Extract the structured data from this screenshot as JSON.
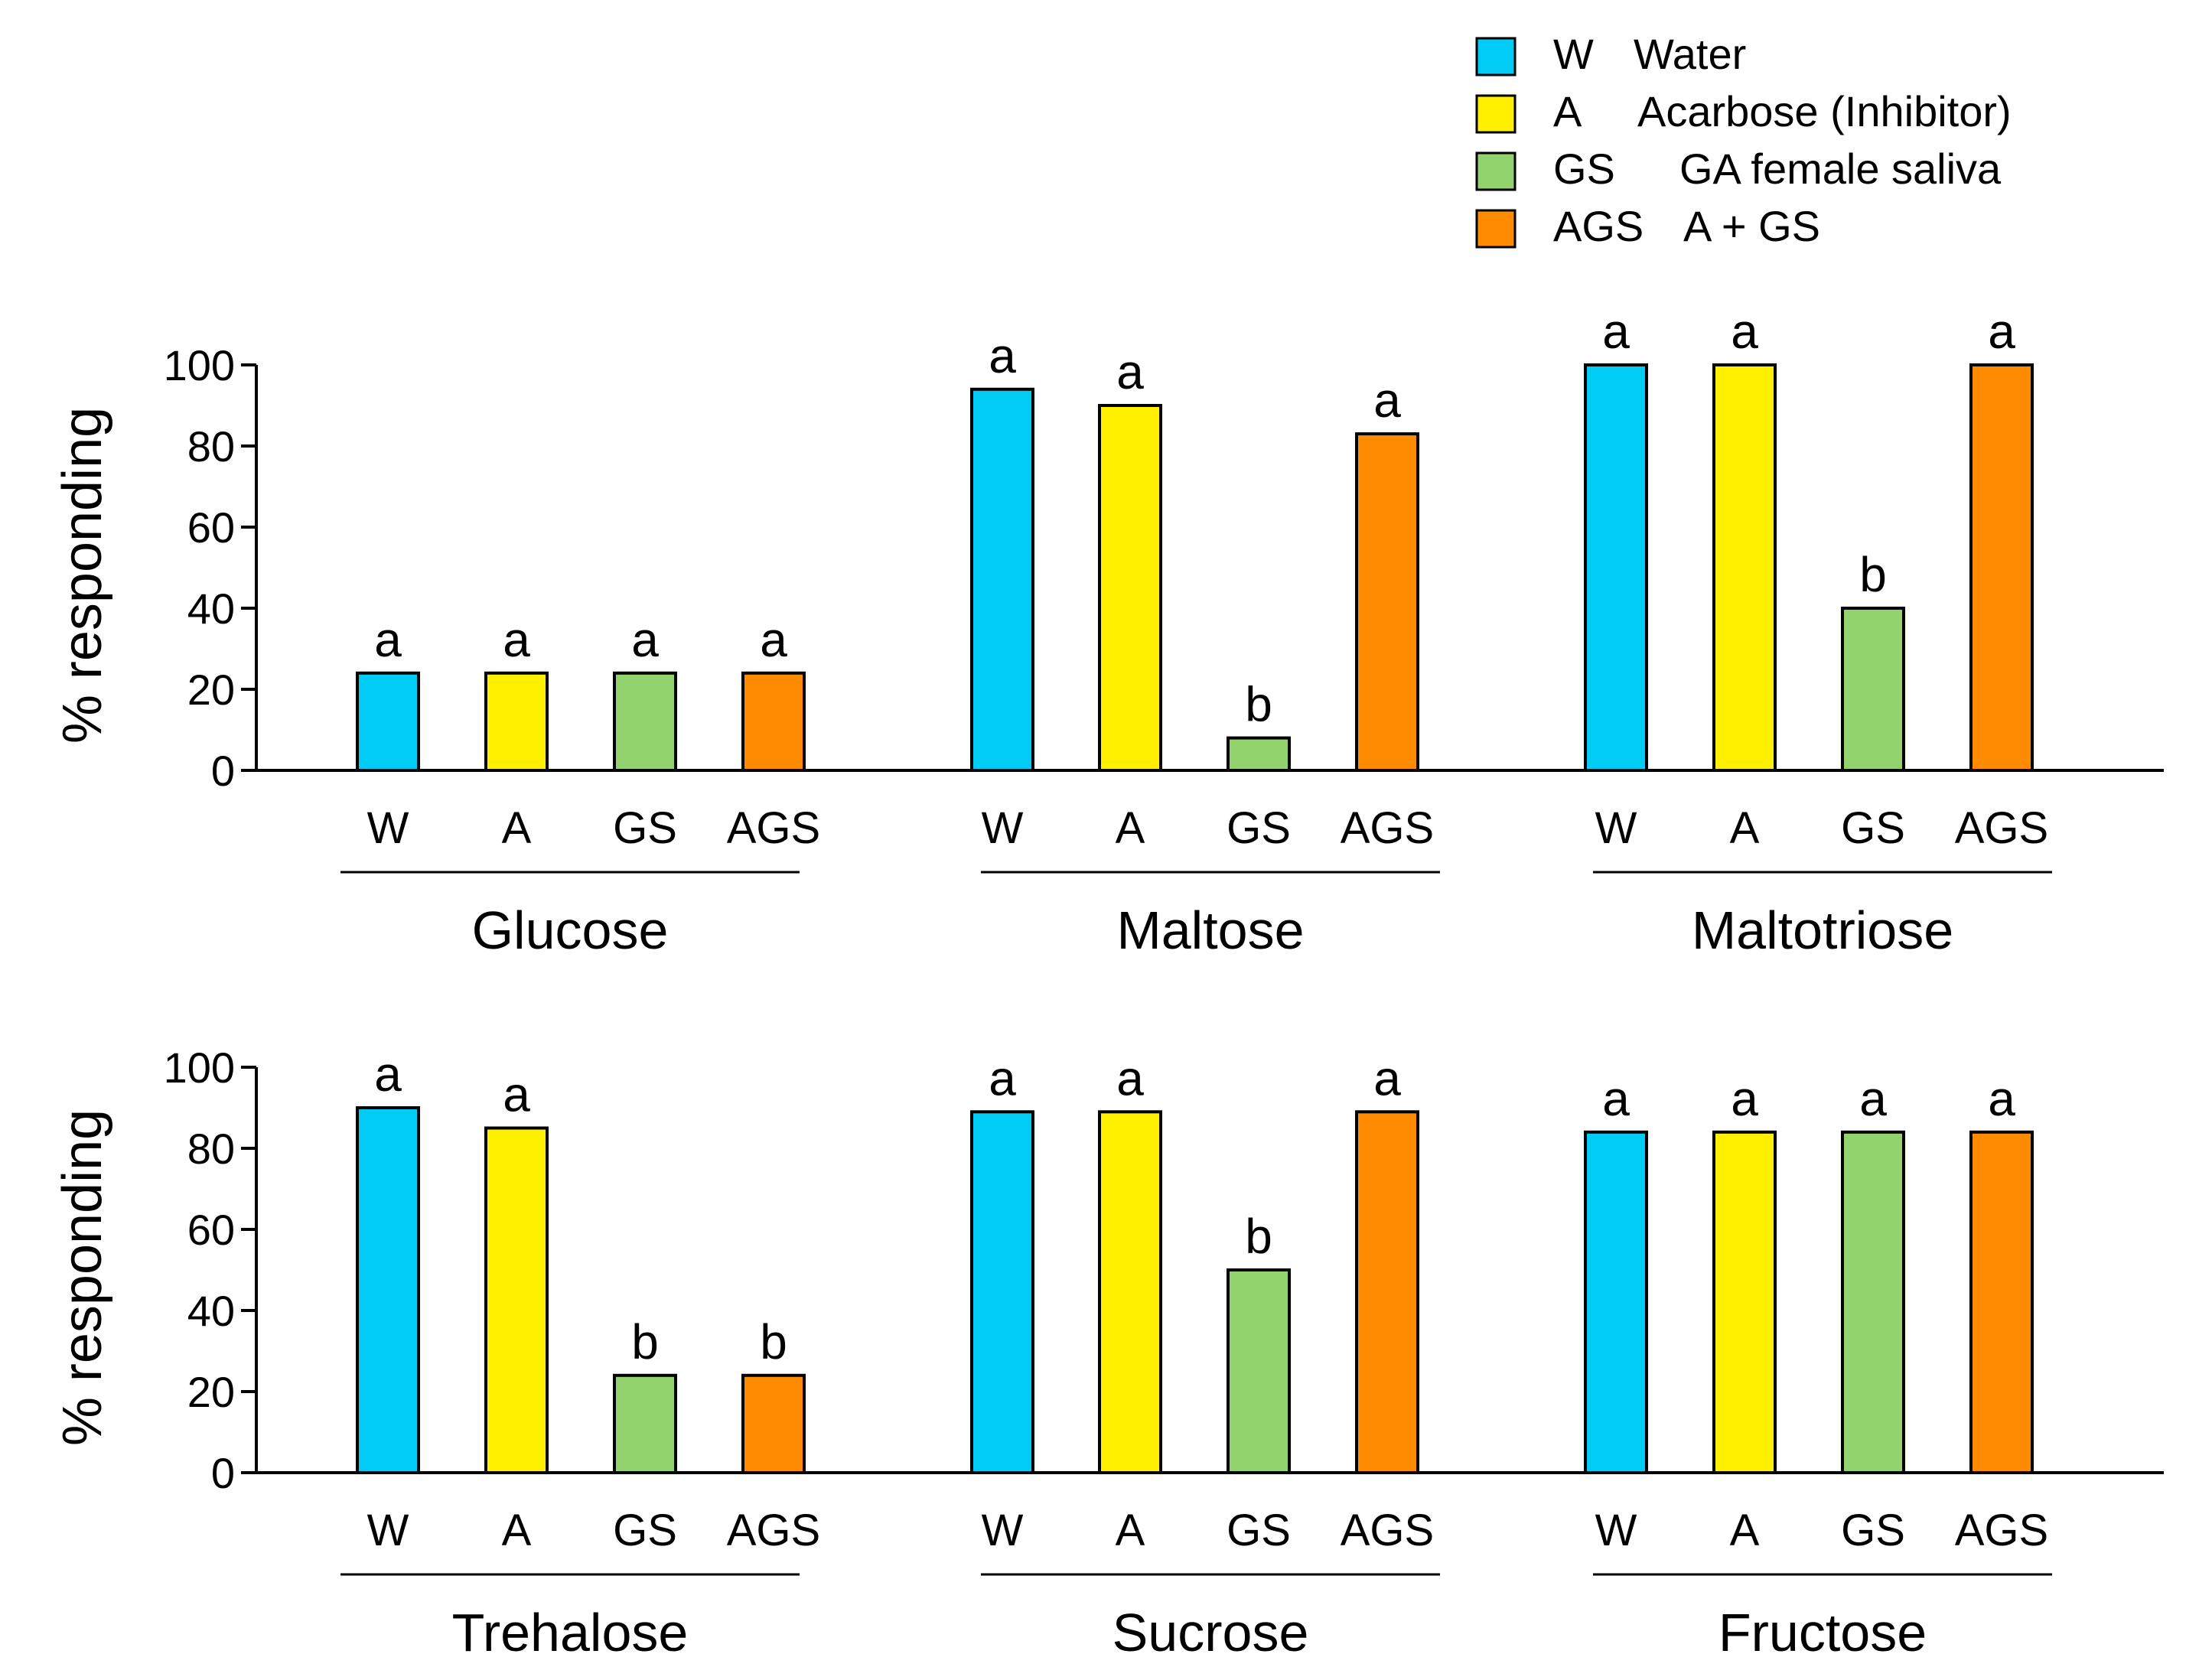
{
  "legend": {
    "items": [
      {
        "code": "W",
        "label": "Water",
        "color": "#00CCF5"
      },
      {
        "code": "A",
        "label": "Acarbose (Inhibitor)",
        "color": "#FFF000"
      },
      {
        "code": "GS",
        "label": "GA female saliva",
        "color": "#92D36E"
      },
      {
        "code": "AGS",
        "label": "A + GS",
        "color": "#FF8C00"
      }
    ]
  },
  "chart_data": [
    {
      "type": "bar",
      "ylabel": "% responding",
      "ylim": [
        0,
        100
      ],
      "yticks": [
        "0",
        "20",
        "40",
        "60",
        "80",
        "100"
      ],
      "groups": [
        {
          "name": "Glucose",
          "categories": [
            "W",
            "A",
            "GS",
            "AGS"
          ],
          "values": [
            24,
            24,
            24,
            24
          ],
          "letters": [
            "a",
            "a",
            "a",
            "a"
          ]
        },
        {
          "name": "Maltose",
          "categories": [
            "W",
            "A",
            "GS",
            "AGS"
          ],
          "values": [
            94,
            90,
            8,
            83
          ],
          "letters": [
            "a",
            "a",
            "b",
            "a"
          ]
        },
        {
          "name": "Maltotriose",
          "categories": [
            "W",
            "A",
            "GS",
            "AGS"
          ],
          "values": [
            100,
            100,
            40,
            100
          ],
          "letters": [
            "a",
            "a",
            "b",
            "a"
          ]
        }
      ]
    },
    {
      "type": "bar",
      "ylabel": "% responding",
      "ylim": [
        0,
        100
      ],
      "yticks": [
        "0",
        "20",
        "40",
        "60",
        "80",
        "100"
      ],
      "groups": [
        {
          "name": "Trehalose",
          "categories": [
            "W",
            "A",
            "GS",
            "AGS"
          ],
          "values": [
            90,
            85,
            24,
            24
          ],
          "letters": [
            "a",
            "a",
            "b",
            "b"
          ]
        },
        {
          "name": "Sucrose",
          "categories": [
            "W",
            "A",
            "GS",
            "AGS"
          ],
          "values": [
            89,
            89,
            50,
            89
          ],
          "letters": [
            "a",
            "a",
            "b",
            "a"
          ]
        },
        {
          "name": "Fructose",
          "categories": [
            "W",
            "A",
            "GS",
            "AGS"
          ],
          "values": [
            84,
            84,
            84,
            84
          ],
          "letters": [
            "a",
            "a",
            "a",
            "a"
          ]
        }
      ]
    }
  ]
}
